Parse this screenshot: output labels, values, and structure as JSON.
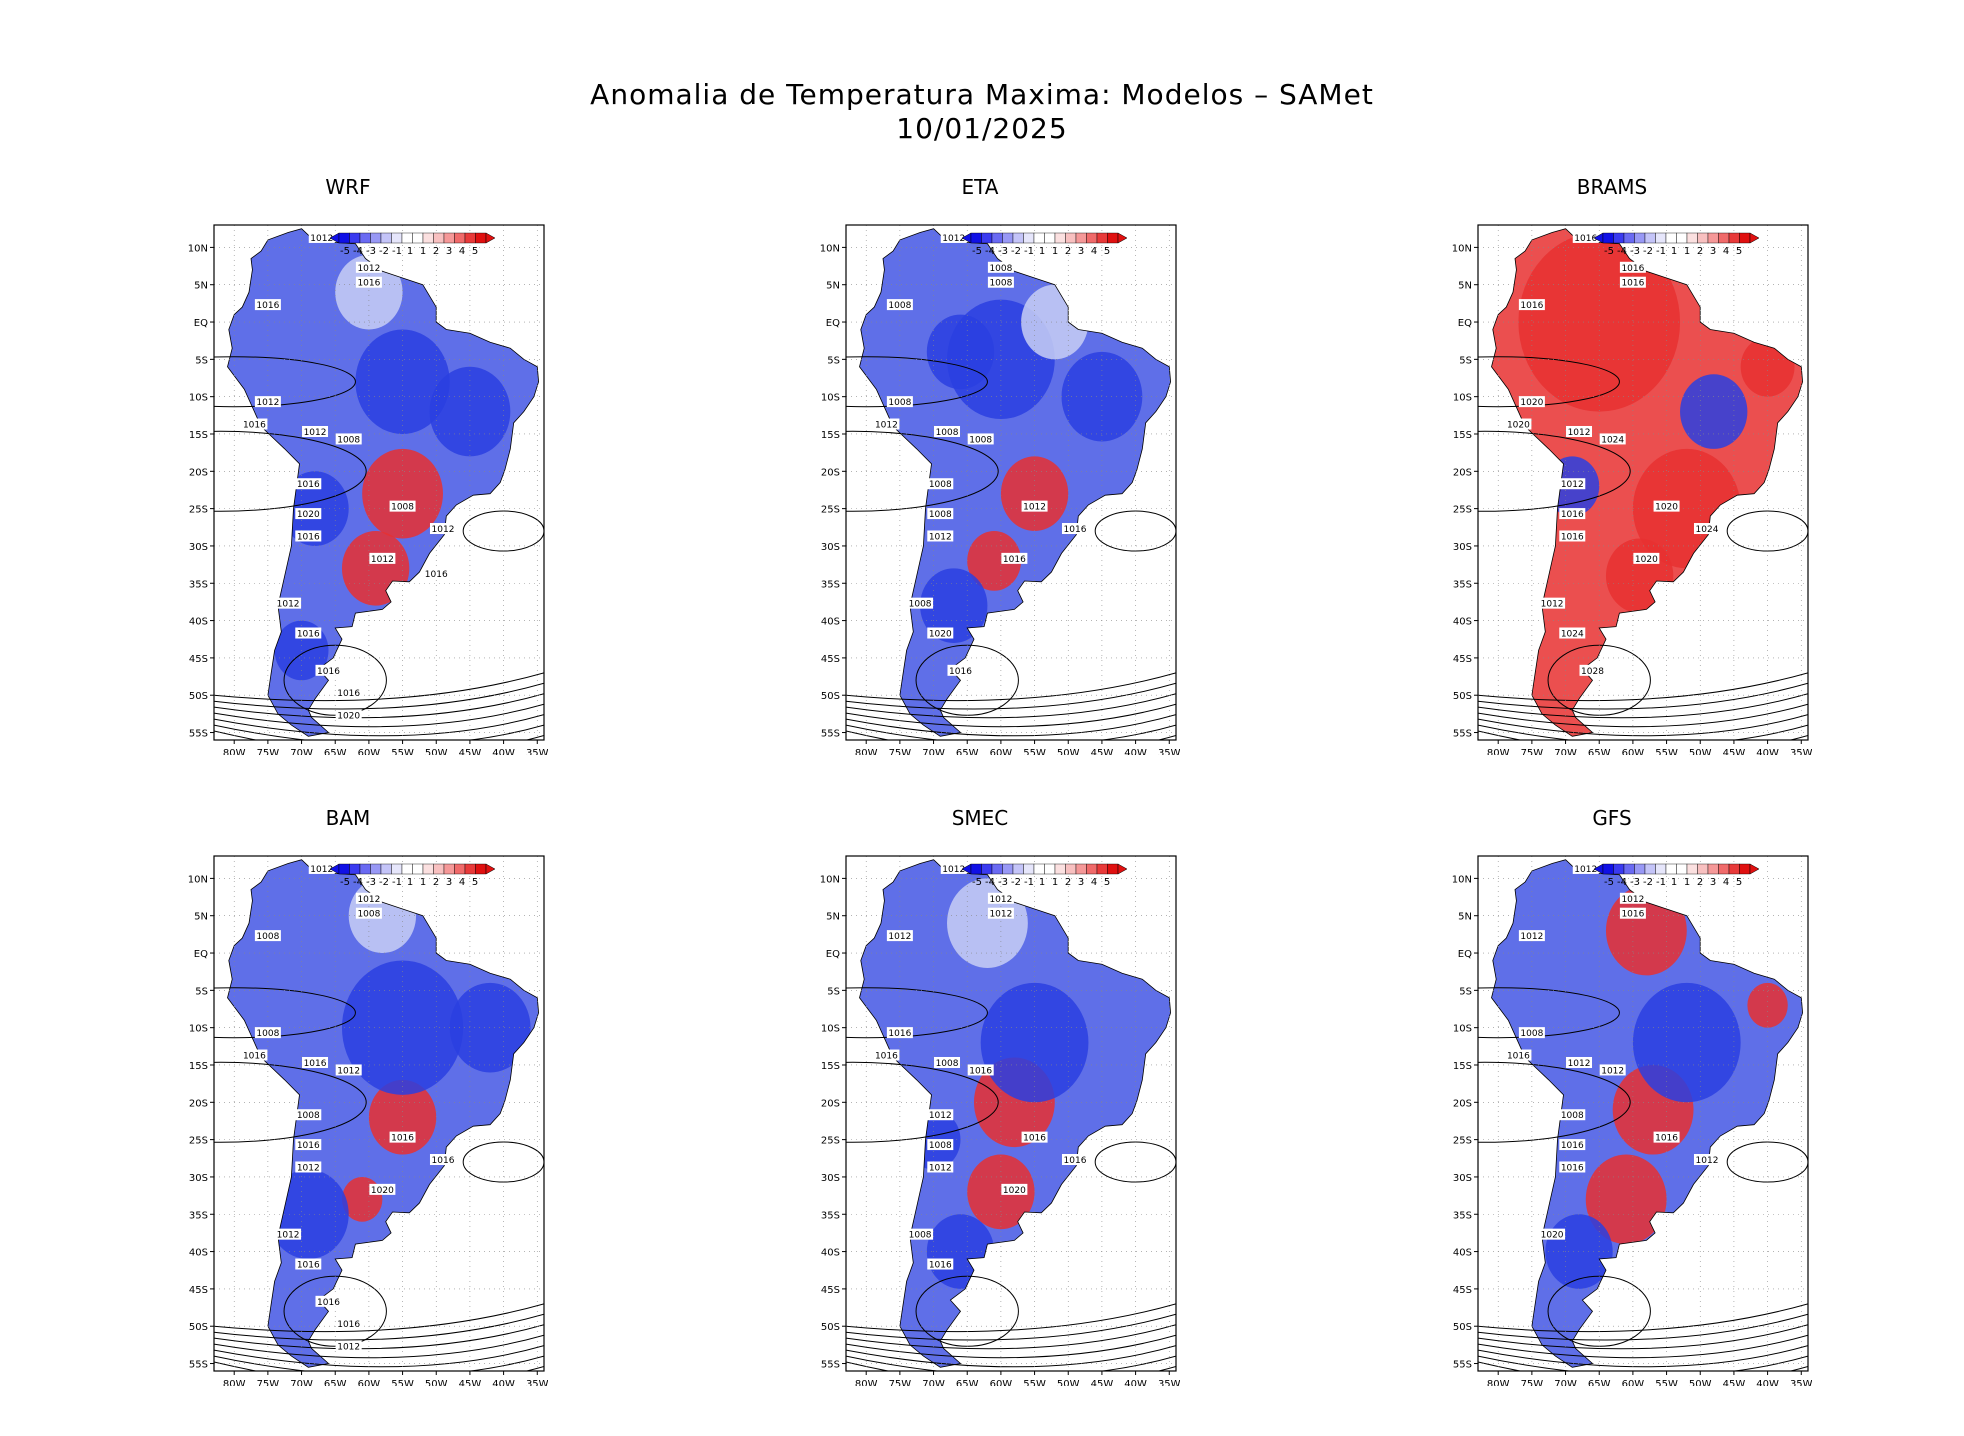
{
  "title": "Anomalia de Temperatura Maxima: Modelos – SAMet",
  "date": "10/01/2025",
  "colors": {
    "scale": [
      "#1010e6",
      "#3a3af0",
      "#6a6af2",
      "#9898f5",
      "#c4c4f8",
      "#e6e6fb",
      "#ffffff",
      "#ffffff",
      "#fbe0e0",
      "#f8c0c0",
      "#f59898",
      "#f06a6a",
      "#e83a3a",
      "#e01010"
    ],
    "land_cold": "#2a3fe0",
    "land_mild": "#c8cff5",
    "land_warm": "#e83030",
    "contour": "#000000"
  },
  "chart_data": [
    {
      "type": "heatmap",
      "title": "WRF",
      "x_ticks": [
        "80W",
        "75W",
        "70W",
        "65W",
        "60W",
        "55W",
        "50W",
        "45W",
        "40W",
        "35W"
      ],
      "y_ticks": [
        "10N",
        "5N",
        "EQ",
        "5S",
        "10S",
        "15S",
        "20S",
        "25S",
        "30S",
        "35S",
        "40S",
        "45S",
        "50S",
        "55S"
      ],
      "legend_labels": [
        "-5",
        "-4",
        "-3",
        "-2",
        "-1",
        "1",
        "1",
        "2",
        "3",
        "4",
        "5"
      ],
      "xlim": [
        -83,
        -34
      ],
      "ylim": [
        -56,
        13
      ],
      "isobar_labels": [
        "1012",
        "1012",
        "1016",
        "1016",
        "1012",
        "1016",
        "1012",
        "1008",
        "1016",
        "1020",
        "1016",
        "1012",
        "1008",
        "1012",
        "1012",
        "1016",
        "1016",
        "1016",
        "1020",
        "1016"
      ]
    },
    {
      "type": "heatmap",
      "title": "ETA",
      "x_ticks": [
        "80W",
        "75W",
        "70W",
        "65W",
        "60W",
        "55W",
        "50W",
        "45W",
        "40W",
        "35W"
      ],
      "y_ticks": [
        "10N",
        "5N",
        "EQ",
        "5S",
        "10S",
        "15S",
        "20S",
        "25S",
        "30S",
        "35S",
        "40S",
        "45S",
        "50S",
        "55S"
      ],
      "legend_labels": [
        "-5",
        "-4",
        "-3",
        "-2",
        "-1",
        "1",
        "1",
        "2",
        "3",
        "4",
        "5"
      ],
      "xlim": [
        -83,
        -34
      ],
      "ylim": [
        -56,
        13
      ],
      "isobar_labels": [
        "1012",
        "1008",
        "1008",
        "1008",
        "1008",
        "1012",
        "1008",
        "1008",
        "1008",
        "1008",
        "1012",
        "1008",
        "1012",
        "1016",
        "1016",
        "1020",
        "1016"
      ]
    },
    {
      "type": "heatmap",
      "title": "BRAMS",
      "x_ticks": [
        "80W",
        "75W",
        "70W",
        "65W",
        "60W",
        "55W",
        "50W",
        "45W",
        "40W",
        "35W"
      ],
      "y_ticks": [
        "10N",
        "5N",
        "EQ",
        "5S",
        "10S",
        "15S",
        "20S",
        "25S",
        "30S",
        "35S",
        "40S",
        "45S",
        "50S",
        "55S"
      ],
      "legend_labels": [
        "-5",
        "-4",
        "-3",
        "-2",
        "-1",
        "1",
        "1",
        "2",
        "3",
        "4",
        "5"
      ],
      "xlim": [
        -83,
        -34
      ],
      "ylim": [
        -56,
        13
      ],
      "isobar_labels": [
        "1016",
        "1016",
        "1016",
        "1016",
        "1020",
        "1020",
        "1012",
        "1024",
        "1012",
        "1016",
        "1016",
        "1012",
        "1020",
        "1024",
        "1020",
        "1024",
        "1028"
      ]
    },
    {
      "type": "heatmap",
      "title": "BAM",
      "x_ticks": [
        "80W",
        "75W",
        "70W",
        "65W",
        "60W",
        "55W",
        "50W",
        "45W",
        "40W",
        "35W"
      ],
      "y_ticks": [
        "10N",
        "5N",
        "EQ",
        "5S",
        "10S",
        "15S",
        "20S",
        "25S",
        "30S",
        "35S",
        "40S",
        "45S",
        "50S",
        "55S"
      ],
      "legend_labels": [
        "-5",
        "-4",
        "-3",
        "-2",
        "-1",
        "1",
        "1",
        "2",
        "3",
        "4",
        "5"
      ],
      "xlim": [
        -83,
        -34
      ],
      "ylim": [
        -56,
        13
      ],
      "isobar_labels": [
        "1012",
        "1012",
        "1008",
        "1008",
        "1008",
        "1016",
        "1016",
        "1012",
        "1008",
        "1016",
        "1012",
        "1012",
        "1016",
        "1016",
        "1020",
        "1016",
        "1016",
        "1016",
        "1012"
      ]
    },
    {
      "type": "heatmap",
      "title": "SMEC",
      "x_ticks": [
        "80W",
        "75W",
        "70W",
        "65W",
        "60W",
        "55W",
        "50W",
        "45W",
        "40W",
        "35W"
      ],
      "y_ticks": [
        "10N",
        "5N",
        "EQ",
        "5S",
        "10S",
        "15S",
        "20S",
        "25S",
        "30S",
        "35S",
        "40S",
        "45S",
        "50S",
        "55S"
      ],
      "legend_labels": [
        "-5",
        "-4",
        "-3",
        "-2",
        "-1",
        "1",
        "1",
        "2",
        "3",
        "4",
        "5"
      ],
      "xlim": [
        -83,
        -34
      ],
      "ylim": [
        -56,
        13
      ],
      "isobar_labels": [
        "1012",
        "1012",
        "1012",
        "1012",
        "1016",
        "1016",
        "1008",
        "1016",
        "1012",
        "1008",
        "1012",
        "1008",
        "1016",
        "1016",
        "1020",
        "1016"
      ]
    },
    {
      "type": "heatmap",
      "title": "GFS",
      "x_ticks": [
        "80W",
        "75W",
        "70W",
        "65W",
        "60W",
        "55W",
        "50W",
        "45W",
        "40W",
        "35W"
      ],
      "y_ticks": [
        "10N",
        "5N",
        "EQ",
        "5S",
        "10S",
        "15S",
        "20S",
        "25S",
        "30S",
        "35S",
        "40S",
        "45S",
        "50S",
        "55S"
      ],
      "legend_labels": [
        "-5",
        "-4",
        "-3",
        "-2",
        "-1",
        "1",
        "1",
        "2",
        "3",
        "4",
        "5"
      ],
      "xlim": [
        -83,
        -34
      ],
      "ylim": [
        -56,
        13
      ],
      "isobar_labels": [
        "1012",
        "1012",
        "1016",
        "1012",
        "1008",
        "1016",
        "1012",
        "1012",
        "1008",
        "1016",
        "1016",
        "1020",
        "1016",
        "1012"
      ]
    }
  ]
}
